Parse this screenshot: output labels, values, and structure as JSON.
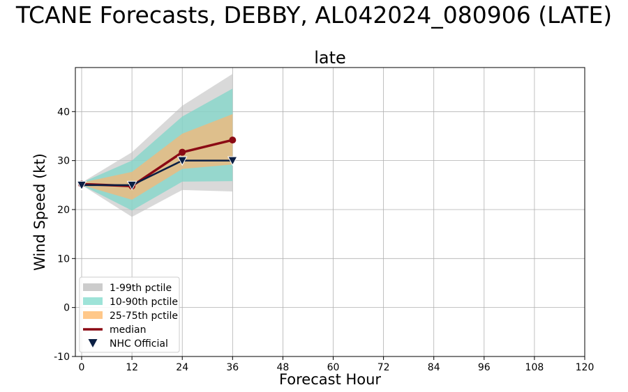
{
  "chart_data": {
    "type": "line",
    "title": "TCANE Forecasts, DEBBY, AL042024_080906 (LATE)",
    "subtitle": "late",
    "xlabel": "Forecast Hour",
    "ylabel": "Wind Speed (kt)",
    "xlim": [
      -1.5,
      120
    ],
    "ylim": [
      -10,
      49
    ],
    "xticks": [
      0,
      12,
      24,
      36,
      48,
      60,
      72,
      84,
      96,
      108,
      120
    ],
    "yticks": [
      -10,
      0,
      10,
      20,
      30,
      40
    ],
    "grid": true,
    "legend_position": "lower-left",
    "x": [
      0,
      12,
      24,
      36
    ],
    "bands": [
      {
        "name": "1-99th pctile",
        "color": "#bfbfbf",
        "opacity": 0.6,
        "lower": [
          25.0,
          18.5,
          24.0,
          23.7
        ],
        "upper": [
          25.5,
          31.7,
          41.2,
          47.7
        ]
      },
      {
        "name": "10-90th pctile",
        "color": "#7fd6c8",
        "opacity": 0.75,
        "lower": [
          25.0,
          19.8,
          25.7,
          25.8
        ],
        "upper": [
          25.5,
          30.0,
          39.0,
          44.7
        ]
      },
      {
        "name": "25-75th pctile",
        "color": "#f5b775",
        "opacity": 0.75,
        "lower": [
          25.0,
          22.0,
          28.3,
          29.2
        ],
        "upper": [
          25.5,
          27.7,
          35.5,
          39.5
        ]
      }
    ],
    "series": [
      {
        "name": "median",
        "color": "#8b0a14",
        "values": [
          25.2,
          24.8,
          31.7,
          34.2
        ]
      },
      {
        "name": "NHC Official",
        "color": "#0b1f44",
        "values": [
          25.0,
          25.0,
          30.0,
          30.0
        ]
      }
    ],
    "legend": [
      {
        "label": "1-99th pctile",
        "color": "#cccccc"
      },
      {
        "label": "10-90th pctile",
        "color": "#9ee3d8"
      },
      {
        "label": "25-75th pctile",
        "color": "#ffc88a"
      },
      {
        "label": "median",
        "color": "#8b0a14"
      },
      {
        "label": "NHC Official",
        "color": "#0b1f44"
      }
    ]
  }
}
